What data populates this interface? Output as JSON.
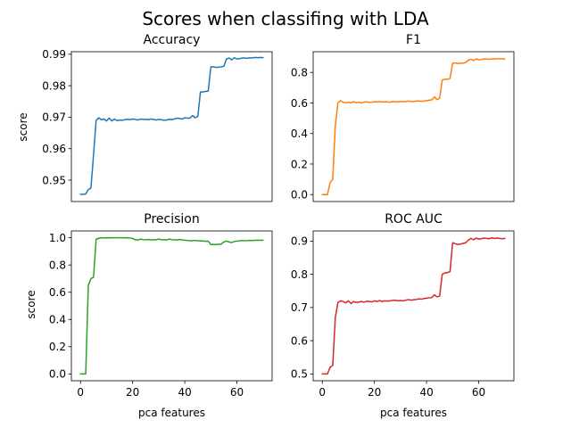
{
  "figure": {
    "title": "Scores when classifing with LDA"
  },
  "chart_data": [
    {
      "type": "line",
      "title": "Accuracy",
      "xlabel": "",
      "ylabel": "score",
      "xlim": [
        -3.5,
        73.5
      ],
      "ylim": [
        0.9432,
        0.9908
      ],
      "yticks": [
        0.95,
        0.96,
        0.97,
        0.98,
        0.99
      ],
      "ytick_labels": [
        "0.95",
        "0.96",
        "0.97",
        "0.98",
        "0.99"
      ],
      "xticks": [],
      "xtick_labels": [],
      "color": "#1f77b4",
      "x": [
        0,
        1,
        2,
        3,
        4,
        5,
        6,
        7,
        8,
        9,
        10,
        11,
        12,
        13,
        14,
        15,
        16,
        17,
        18,
        19,
        20,
        21,
        22,
        23,
        24,
        25,
        26,
        27,
        28,
        29,
        30,
        31,
        32,
        33,
        34,
        35,
        36,
        37,
        38,
        39,
        40,
        41,
        42,
        43,
        44,
        45,
        46,
        47,
        48,
        49,
        50,
        51,
        52,
        53,
        54,
        55,
        56,
        57,
        58,
        59,
        60,
        61,
        62,
        63,
        64,
        65,
        66,
        67,
        68,
        69,
        70
      ],
      "y": [
        0.9455,
        0.9455,
        0.9456,
        0.947,
        0.9475,
        0.958,
        0.969,
        0.9698,
        0.9692,
        0.9694,
        0.9688,
        0.9697,
        0.9688,
        0.9694,
        0.9689,
        0.9691,
        0.969,
        0.9692,
        0.9693,
        0.9692,
        0.9694,
        0.9693,
        0.9691,
        0.9694,
        0.9693,
        0.9693,
        0.9692,
        0.9694,
        0.9693,
        0.9691,
        0.9693,
        0.9692,
        0.969,
        0.9691,
        0.9693,
        0.9692,
        0.9694,
        0.9697,
        0.9696,
        0.9694,
        0.9698,
        0.9697,
        0.9697,
        0.9705,
        0.9698,
        0.9702,
        0.978,
        0.978,
        0.9782,
        0.9783,
        0.986,
        0.986,
        0.9858,
        0.9859,
        0.986,
        0.9862,
        0.9885,
        0.9888,
        0.9882,
        0.9889,
        0.9885,
        0.9886,
        0.9888,
        0.9888,
        0.9887,
        0.9889,
        0.9888,
        0.989,
        0.9889,
        0.989,
        0.9889
      ]
    },
    {
      "type": "line",
      "title": "F1",
      "xlabel": "",
      "ylabel": "",
      "xlim": [
        -3.5,
        73.5
      ],
      "ylim": [
        -0.0455,
        0.9355
      ],
      "yticks": [
        0.0,
        0.2,
        0.4,
        0.6,
        0.8
      ],
      "ytick_labels": [
        "0.0",
        "0.2",
        "0.4",
        "0.6",
        "0.8"
      ],
      "xticks": [],
      "xtick_labels": [],
      "color": "#ff7f0e",
      "x": [
        0,
        1,
        2,
        3,
        4,
        5,
        6,
        7,
        8,
        9,
        10,
        11,
        12,
        13,
        14,
        15,
        16,
        17,
        18,
        19,
        20,
        21,
        22,
        23,
        24,
        25,
        26,
        27,
        28,
        29,
        30,
        31,
        32,
        33,
        34,
        35,
        36,
        37,
        38,
        39,
        40,
        41,
        42,
        43,
        44,
        45,
        46,
        47,
        48,
        49,
        50,
        51,
        52,
        53,
        54,
        55,
        56,
        57,
        58,
        59,
        60,
        61,
        62,
        63,
        64,
        65,
        66,
        67,
        68,
        69,
        70
      ],
      "y": [
        0.0,
        0.0,
        0.0,
        0.08,
        0.1,
        0.45,
        0.6,
        0.615,
        0.605,
        0.6,
        0.605,
        0.6,
        0.608,
        0.602,
        0.605,
        0.6,
        0.605,
        0.608,
        0.603,
        0.605,
        0.608,
        0.606,
        0.61,
        0.606,
        0.608,
        0.607,
        0.605,
        0.61,
        0.608,
        0.607,
        0.61,
        0.608,
        0.609,
        0.612,
        0.61,
        0.609,
        0.612,
        0.613,
        0.611,
        0.613,
        0.615,
        0.618,
        0.62,
        0.64,
        0.622,
        0.63,
        0.75,
        0.755,
        0.755,
        0.76,
        0.86,
        0.862,
        0.858,
        0.86,
        0.86,
        0.865,
        0.88,
        0.886,
        0.878,
        0.889,
        0.883,
        0.884,
        0.888,
        0.887,
        0.886,
        0.889,
        0.888,
        0.89,
        0.889,
        0.889,
        0.888
      ]
    },
    {
      "type": "line",
      "title": "Precision",
      "xlabel": "pca features",
      "ylabel": "score",
      "xlim": [
        -3.5,
        73.5
      ],
      "ylim": [
        -0.05,
        1.05
      ],
      "yticks": [
        0.0,
        0.2,
        0.4,
        0.6,
        0.8,
        1.0
      ],
      "ytick_labels": [
        "0.0",
        "0.2",
        "0.4",
        "0.6",
        "0.8",
        "1.0"
      ],
      "xticks": [
        0,
        20,
        40,
        60
      ],
      "xtick_labels": [
        "0",
        "20",
        "40",
        "60"
      ],
      "color": "#2ca02c",
      "x": [
        0,
        1,
        2,
        3,
        4,
        5,
        6,
        7,
        8,
        9,
        10,
        11,
        12,
        13,
        14,
        15,
        16,
        17,
        18,
        19,
        20,
        21,
        22,
        23,
        24,
        25,
        26,
        27,
        28,
        29,
        30,
        31,
        32,
        33,
        34,
        35,
        36,
        37,
        38,
        39,
        40,
        41,
        42,
        43,
        44,
        45,
        46,
        47,
        48,
        49,
        50,
        51,
        52,
        53,
        54,
        55,
        56,
        57,
        58,
        59,
        60,
        61,
        62,
        63,
        64,
        65,
        66,
        67,
        68,
        69,
        70
      ],
      "y": [
        0.0,
        0.0,
        0.0,
        0.65,
        0.7,
        0.71,
        0.99,
        0.995,
        1.0,
        0.998,
        1.0,
        0.999,
        1.0,
        1.0,
        1.0,
        1.0,
        1.0,
        0.999,
        1.0,
        0.998,
        0.995,
        0.985,
        0.983,
        0.99,
        0.986,
        0.985,
        0.988,
        0.984,
        0.986,
        0.985,
        0.99,
        0.986,
        0.985,
        0.984,
        0.99,
        0.986,
        0.985,
        0.983,
        0.988,
        0.984,
        0.982,
        0.98,
        0.978,
        0.979,
        0.98,
        0.978,
        0.977,
        0.976,
        0.974,
        0.975,
        0.95,
        0.951,
        0.95,
        0.952,
        0.953,
        0.97,
        0.975,
        0.969,
        0.965,
        0.972,
        0.976,
        0.977,
        0.98,
        0.978,
        0.979,
        0.981,
        0.98,
        0.981,
        0.982,
        0.981,
        0.982
      ]
    },
    {
      "type": "line",
      "title": "ROC AUC",
      "xlabel": "pca features",
      "ylabel": "",
      "xlim": [
        -3.5,
        73.5
      ],
      "ylim": [
        0.4795,
        0.9305
      ],
      "yticks": [
        0.5,
        0.6,
        0.7,
        0.8,
        0.9
      ],
      "ytick_labels": [
        "0.5",
        "0.6",
        "0.7",
        "0.8",
        "0.9"
      ],
      "xticks": [
        0,
        20,
        40,
        60
      ],
      "xtick_labels": [
        "0",
        "20",
        "40",
        "60"
      ],
      "color": "#d62728",
      "x": [
        0,
        1,
        2,
        3,
        4,
        5,
        6,
        7,
        8,
        9,
        10,
        11,
        12,
        13,
        14,
        15,
        16,
        17,
        18,
        19,
        20,
        21,
        22,
        23,
        24,
        25,
        26,
        27,
        28,
        29,
        30,
        31,
        32,
        33,
        34,
        35,
        36,
        37,
        38,
        39,
        40,
        41,
        42,
        43,
        44,
        45,
        46,
        47,
        48,
        49,
        50,
        51,
        52,
        53,
        54,
        55,
        56,
        57,
        58,
        59,
        60,
        61,
        62,
        63,
        64,
        65,
        66,
        67,
        68,
        69,
        70
      ],
      "y": [
        0.5,
        0.5,
        0.5,
        0.52,
        0.525,
        0.67,
        0.715,
        0.72,
        0.718,
        0.714,
        0.72,
        0.712,
        0.718,
        0.715,
        0.716,
        0.718,
        0.716,
        0.719,
        0.718,
        0.717,
        0.72,
        0.718,
        0.721,
        0.718,
        0.72,
        0.719,
        0.72,
        0.721,
        0.722,
        0.72,
        0.721,
        0.72,
        0.722,
        0.724,
        0.722,
        0.723,
        0.724,
        0.726,
        0.725,
        0.727,
        0.728,
        0.729,
        0.73,
        0.738,
        0.732,
        0.734,
        0.8,
        0.804,
        0.805,
        0.808,
        0.895,
        0.892,
        0.89,
        0.891,
        0.893,
        0.895,
        0.903,
        0.908,
        0.904,
        0.909,
        0.906,
        0.907,
        0.909,
        0.908,
        0.907,
        0.91,
        0.908,
        0.909,
        0.908,
        0.907,
        0.908
      ]
    }
  ]
}
